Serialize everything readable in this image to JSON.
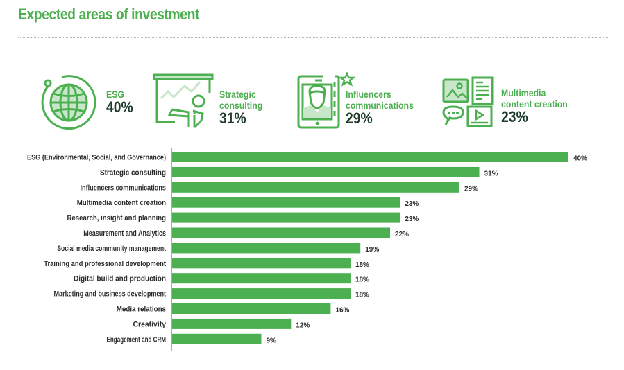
{
  "title": "Expected areas of investment",
  "colors": {
    "accent": "#4caf50",
    "bar": "#4caf50",
    "value_text": "#1f3b2c",
    "icon_fill": "#c8e6c9"
  },
  "kpis": [
    {
      "icon": "globe-icon",
      "label_lines": [
        "ESG"
      ],
      "value": "40%"
    },
    {
      "icon": "presentation-icon",
      "label_lines": [
        "Strategic",
        "consulting"
      ],
      "value": "31%"
    },
    {
      "icon": "tablet-influencer-icon",
      "label_lines": [
        "Influencers",
        "communications"
      ],
      "value": "29%"
    },
    {
      "icon": "multimedia-icon",
      "label_lines": [
        "Multimedia",
        "content creation"
      ],
      "value": "23%"
    }
  ],
  "chart_data": {
    "type": "bar",
    "orientation": "horizontal",
    "title": "Expected areas of investment",
    "xlabel": "",
    "ylabel": "",
    "grid": false,
    "xlim": [
      0,
      40
    ],
    "categories": [
      "ESG (Environmental, Social, and Governance)",
      "Strategic consulting",
      "Influencers communications",
      "Multimedia content creation",
      "Research, insight and planning",
      "Measurement and Analytics",
      "Social media community management",
      "Training and professional development",
      "Digital build and production",
      "Marketing and business development",
      "Media relations",
      "Creativity",
      "Engagement and CRM"
    ],
    "values": [
      40,
      31,
      29,
      23,
      23,
      22,
      19,
      18,
      18,
      18,
      16,
      12,
      9
    ],
    "value_labels": [
      "40%",
      "31%",
      "29%",
      "23%",
      "23%",
      "22%",
      "19%",
      "18%",
      "18%",
      "18%",
      "16%",
      "12%",
      "9%"
    ]
  }
}
